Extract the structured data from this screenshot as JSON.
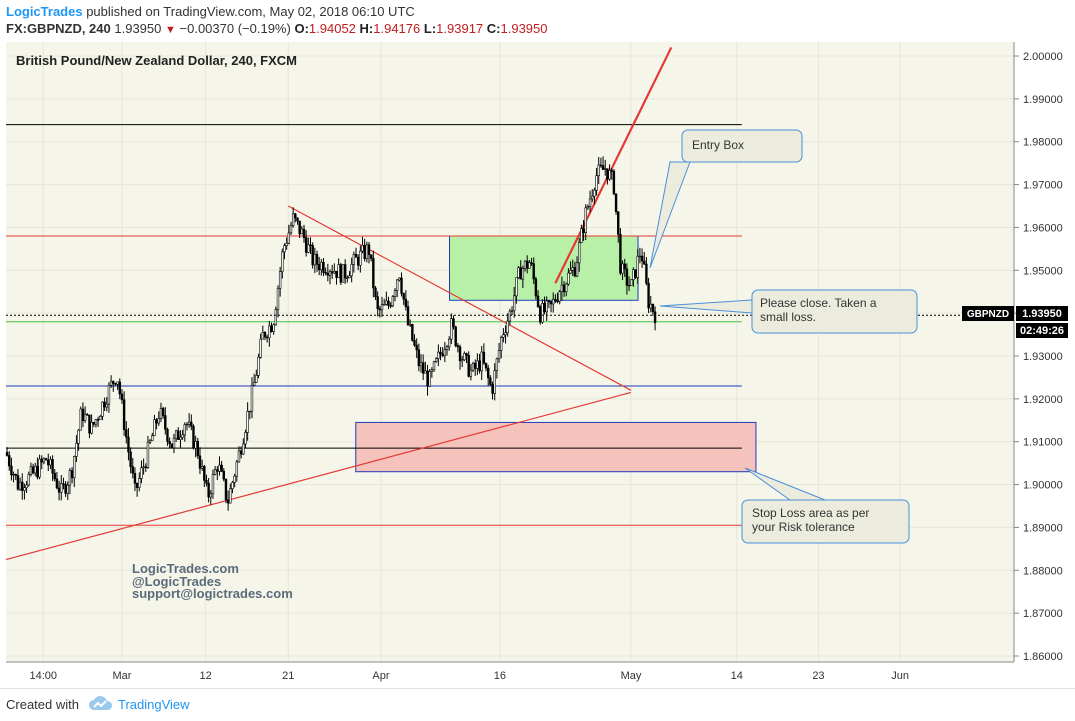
{
  "header": {
    "publisher": "LogicTrades",
    "published_on": "published on TradingView.com, May 02, 2018 06:10 UTC",
    "symbol": "FX:GBPNZD, 240",
    "last": "1.93950",
    "change": "−0.00370 (−0.19%)",
    "open_label": "O:",
    "open": "1.94052",
    "high_label": "H:",
    "high": "1.94176",
    "low_label": "L:",
    "low": "1.93917",
    "close_label": "C:",
    "close": "1.93950"
  },
  "chart_title": "British Pound/New Zealand Dollar, 240, FXCM",
  "watermark": [
    "LogicTrades.com",
    "@LogicTrades",
    "support@logictrades.com"
  ],
  "callouts": {
    "entry": "Entry Box",
    "close": [
      "Please close. Taken a",
      "small loss."
    ],
    "stop": [
      "Stop Loss area as per",
      "your Risk tolerance"
    ]
  },
  "price_tag": {
    "symbol": "GBPNZD",
    "price": "1.93950",
    "countdown": "02:49:26"
  },
  "footer": {
    "created_with": "Created with",
    "brand": "TradingView"
  },
  "colors": {
    "background": "#f5f5ea",
    "candle": "#000000",
    "red_line": "#e53935",
    "green_line": "#43c343",
    "blue_line": "#1f3cb8",
    "entry_box_fill": "#b8f0a8",
    "stop_box_fill": "#f6c2bc",
    "callout_fill": "#ececde",
    "callout_border": "#4a90d9",
    "brand_blue": "#2196f3"
  },
  "chart_data": {
    "type": "candlestick",
    "title": "British Pound/New Zealand Dollar, 240, FXCM",
    "y_axis": {
      "min": 1.86,
      "max": 2.0,
      "ticks": [
        "2.00000",
        "1.99000",
        "1.98000",
        "1.97000",
        "1.96000",
        "1.95000",
        "1.94000",
        "1.93000",
        "1.92000",
        "1.91000",
        "1.90000",
        "1.89000",
        "1.88000",
        "1.87000",
        "1.86000"
      ]
    },
    "x_axis": {
      "ticks": [
        "14:00",
        "Mar",
        "12",
        "21",
        "Apr",
        "16",
        "May",
        "14",
        "23",
        "Jun"
      ]
    },
    "horizontal_levels": [
      {
        "price": 1.984,
        "color": "black"
      },
      {
        "price": 1.958,
        "color": "red"
      },
      {
        "price": 1.938,
        "color": "green"
      },
      {
        "price": 1.923,
        "color": "blue"
      },
      {
        "price": 1.9085,
        "color": "black"
      },
      {
        "price": 1.8905,
        "color": "red"
      }
    ],
    "trend_lines": [
      {
        "from": [
          0,
          1.8825
        ],
        "to": [
          0.62,
          1.9215
        ],
        "color": "red"
      },
      {
        "from": [
          0.28,
          1.965
        ],
        "to": [
          0.62,
          1.922
        ],
        "color": "red"
      },
      {
        "from": [
          0.545,
          1.947
        ],
        "to": [
          0.66,
          2.002
        ],
        "color": "red"
      }
    ],
    "zones": [
      {
        "name": "Entry Box",
        "price_top": 1.958,
        "price_bottom": 1.943,
        "color": "green"
      },
      {
        "name": "Stop Loss",
        "price_top": 1.9145,
        "price_bottom": 1.903,
        "color": "red"
      }
    ],
    "price_path": [
      [
        0.0,
        1.9075
      ],
      [
        0.012,
        1.9
      ],
      [
        0.025,
        1.902
      ],
      [
        0.04,
        1.906
      ],
      [
        0.055,
        1.898
      ],
      [
        0.065,
        1.903
      ],
      [
        0.075,
        1.917
      ],
      [
        0.085,
        1.913
      ],
      [
        0.1,
        1.921
      ],
      [
        0.11,
        1.926
      ],
      [
        0.12,
        1.91
      ],
      [
        0.128,
        1.898
      ],
      [
        0.14,
        1.907
      ],
      [
        0.152,
        1.917
      ],
      [
        0.165,
        1.909
      ],
      [
        0.178,
        1.915
      ],
      [
        0.19,
        1.908
      ],
      [
        0.2,
        1.897
      ],
      [
        0.21,
        1.905
      ],
      [
        0.22,
        1.896
      ],
      [
        0.232,
        1.908
      ],
      [
        0.245,
        1.922
      ],
      [
        0.255,
        1.935
      ],
      [
        0.265,
        1.938
      ],
      [
        0.275,
        1.955
      ],
      [
        0.285,
        1.962
      ],
      [
        0.295,
        1.958
      ],
      [
        0.305,
        1.952
      ],
      [
        0.32,
        1.951
      ],
      [
        0.335,
        1.949
      ],
      [
        0.35,
        1.953
      ],
      [
        0.36,
        1.955
      ],
      [
        0.368,
        1.94
      ],
      [
        0.38,
        1.942
      ],
      [
        0.39,
        1.95
      ],
      [
        0.398,
        1.938
      ],
      [
        0.41,
        1.928
      ],
      [
        0.42,
        1.924
      ],
      [
        0.43,
        1.93
      ],
      [
        0.442,
        1.937
      ],
      [
        0.452,
        1.93
      ],
      [
        0.462,
        1.926
      ],
      [
        0.472,
        1.929
      ],
      [
        0.482,
        1.922
      ],
      [
        0.492,
        1.935
      ],
      [
        0.5,
        1.94
      ],
      [
        0.51,
        1.95
      ],
      [
        0.52,
        1.952
      ],
      [
        0.53,
        1.94
      ],
      [
        0.54,
        1.941
      ],
      [
        0.55,
        1.946
      ],
      [
        0.565,
        1.951
      ],
      [
        0.575,
        1.963
      ],
      [
        0.585,
        1.972
      ],
      [
        0.595,
        1.974
      ],
      [
        0.603,
        1.97
      ],
      [
        0.61,
        1.95
      ],
      [
        0.62,
        1.946
      ],
      [
        0.63,
        1.955
      ],
      [
        0.637,
        1.943
      ],
      [
        0.645,
        1.9395
      ]
    ]
  }
}
